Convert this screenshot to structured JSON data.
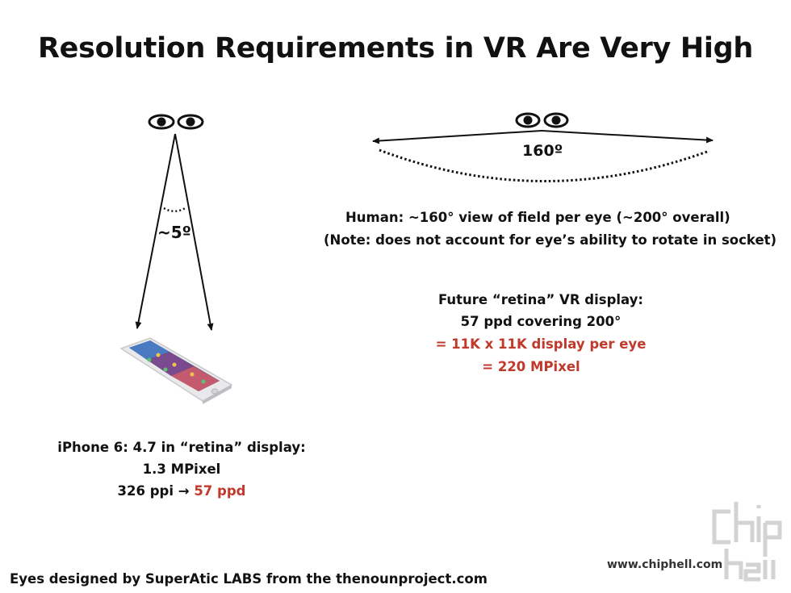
{
  "title": "Resolution Requirements in VR Are Very High",
  "left_diagram": {
    "angle_label": "~5º"
  },
  "right_diagram": {
    "angle_label": "160º"
  },
  "human_text": {
    "line1": "Human: ~160° view of field per eye (~200° overall)",
    "line2": "(Note: does not account for eye’s ability to rotate in socket)"
  },
  "future_display": {
    "line1": "Future “retina” VR display:",
    "line2": "57 ppd covering 200°",
    "line3": "= 11K x 11K display per eye",
    "line4": "=  220 MPixel"
  },
  "iphone_text": {
    "line1": "iPhone 6: 4.7 in “retina” display:",
    "line2": "1.3 MPixel",
    "line3_prefix": "326 ppi → ",
    "line3_highlight": "57 ppd"
  },
  "footer_credit": "Eyes designed by SuperAtic LABS from the thenounproject.com",
  "watermark": {
    "url": "www.chiphell.com",
    "logo_text": "chip hell"
  },
  "colors": {
    "highlight": "#c0392b",
    "text": "#111111"
  }
}
